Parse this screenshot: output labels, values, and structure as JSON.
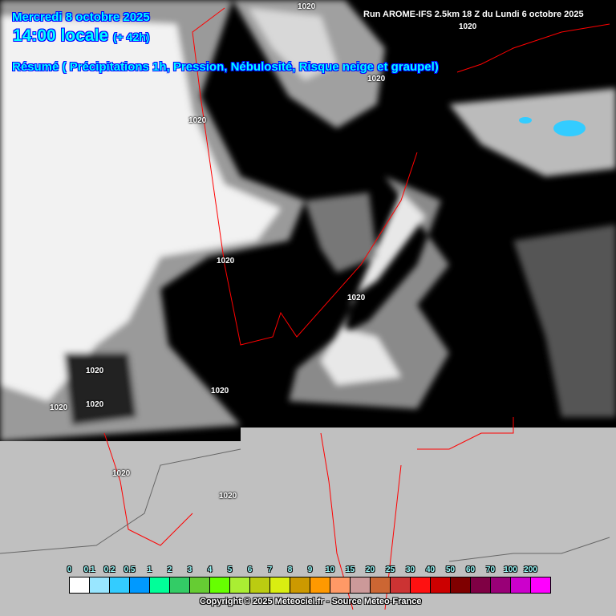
{
  "header": {
    "date": "Mercredi 8 octobre 2025",
    "time": "14:00 locale",
    "lead": "(+ 42h)",
    "title": "Résumé ( Précipitations 1h, Pression, Nébulosité, Risque neige et graupel)",
    "run": "Run AROME-IFS 2.5km 18 Z du Lundi 6 octobre 2025"
  },
  "isobars": [
    "1020",
    "1020",
    "1020",
    "1020",
    "1020",
    "1020",
    "1020",
    "1020",
    "1020",
    "1020",
    "1020",
    "1020"
  ],
  "legend": {
    "labels": [
      "0",
      "0.1",
      "0.2",
      "0.5",
      "1",
      "2",
      "3",
      "4",
      "5",
      "6",
      "7",
      "8",
      "9",
      "10",
      "15",
      "20",
      "25",
      "30",
      "40",
      "50",
      "60",
      "70",
      "100",
      "200"
    ],
    "colors": [
      "#ffffff",
      "#99e6ff",
      "#33ccff",
      "#0099ff",
      "#00ff99",
      "#33cc66",
      "#66cc33",
      "#66ff00",
      "#aaee33",
      "#bbcc11",
      "#d9ee11",
      "#cc9900",
      "#ff9900",
      "#ff9966",
      "#cc9999",
      "#cc6633",
      "#cc3333",
      "#ff1111",
      "#cc0000",
      "#7f0000",
      "#7f0044",
      "#990077",
      "#cc00cc",
      "#ff00ff"
    ]
  },
  "copyright": "Copyright © 2025 Meteociel.fr - Source Meteo-France",
  "colors": {
    "background": "#000000",
    "outside_domain": "#c0c0c0",
    "borders": "#ff0000",
    "title_text": "#00ffff"
  }
}
